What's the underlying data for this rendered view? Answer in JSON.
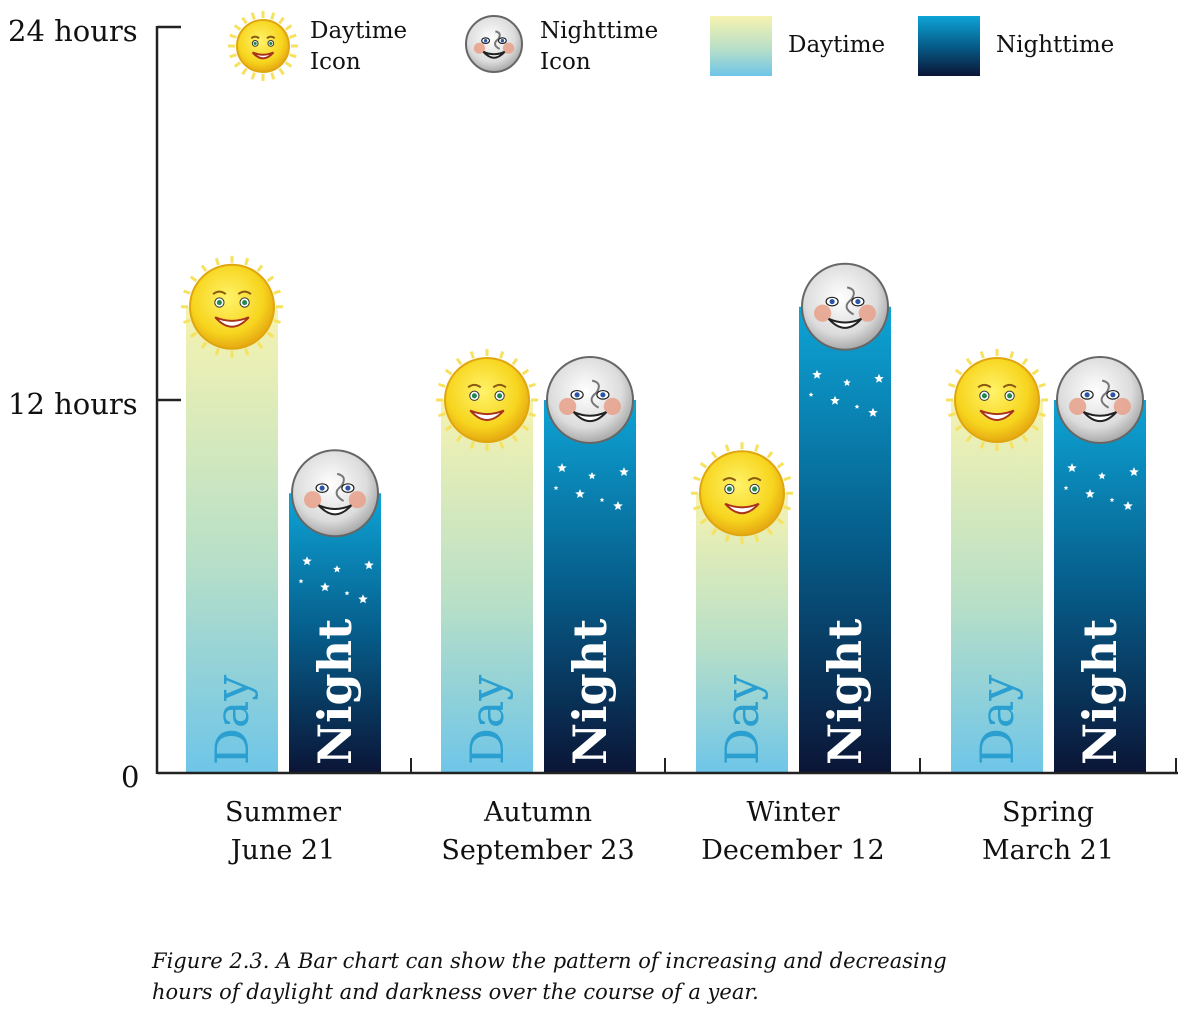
{
  "chart_data": {
    "type": "bar",
    "title": "",
    "xlabel": "",
    "ylabel": "",
    "ylim": [
      0,
      24
    ],
    "y_ticks": [
      {
        "value": 0,
        "label": "0"
      },
      {
        "value": 12,
        "label": "12 hours"
      },
      {
        "value": 24,
        "label": "24 hours"
      }
    ],
    "categories": [
      {
        "season": "Summer",
        "date": "June 21"
      },
      {
        "season": "Autumn",
        "date": "September 23"
      },
      {
        "season": "Winter",
        "date": "December 12"
      },
      {
        "season": "Spring",
        "date": "March 21"
      }
    ],
    "series": [
      {
        "name": "Daytime",
        "bar_label": "Day",
        "values": [
          15,
          12,
          9,
          12
        ]
      },
      {
        "name": "Nighttime",
        "bar_label": "Night",
        "values": [
          9,
          12,
          15,
          12
        ]
      }
    ],
    "legend": {
      "placement": "top",
      "items": [
        {
          "label_line1": "Daytime",
          "label_line2": "Icon",
          "kind": "sun-icon"
        },
        {
          "label_line1": "Nighttime",
          "label_line2": "Icon",
          "kind": "moon-icon"
        },
        {
          "label": "Daytime",
          "kind": "day-gradient-swatch"
        },
        {
          "label": "Nighttime",
          "kind": "night-gradient-swatch"
        }
      ]
    },
    "grid": false
  },
  "colors": {
    "day_top": "#f6f3b0",
    "day_bottom": "#6ec5e8",
    "night_top": "#0da4d6",
    "night_mid": "#065d8a",
    "night_bottom": "#0b1536",
    "sun": "#f7d51e",
    "moon": "#d4d4d4",
    "axis": "#222222"
  },
  "caption": {
    "line1": "Figure 2.3. A Bar chart can show the pattern of increasing and decreasing",
    "line2": "hours of daylight and darkness over the course of a year."
  }
}
